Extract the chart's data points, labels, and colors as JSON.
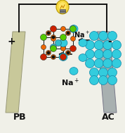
{
  "fig_width": 1.78,
  "fig_height": 1.89,
  "dpi": 100,
  "bg_color": "#f0f0e8",
  "electrode_left_color": "#c8c89a",
  "electrode_right_color": "#a8b0b0",
  "wire_color": "#111111",
  "bulb_body_color": "#f5d840",
  "bulb_base_color": "#888888",
  "pb_colors": {
    "green": "#55cc00",
    "red": "#cc2200",
    "orange": "#ee6600",
    "cyan": "#33bbcc",
    "black": "#111111"
  },
  "ac_sphere_color": "#33ccdd",
  "na_ion_color": "#33ccdd",
  "label_pb": "PB",
  "label_ac": "AC",
  "plus_sign": "+",
  "minus_sign": "-",
  "arrow_color": "#111111",
  "label_fontsize": 7,
  "sign_fontsize": 9
}
